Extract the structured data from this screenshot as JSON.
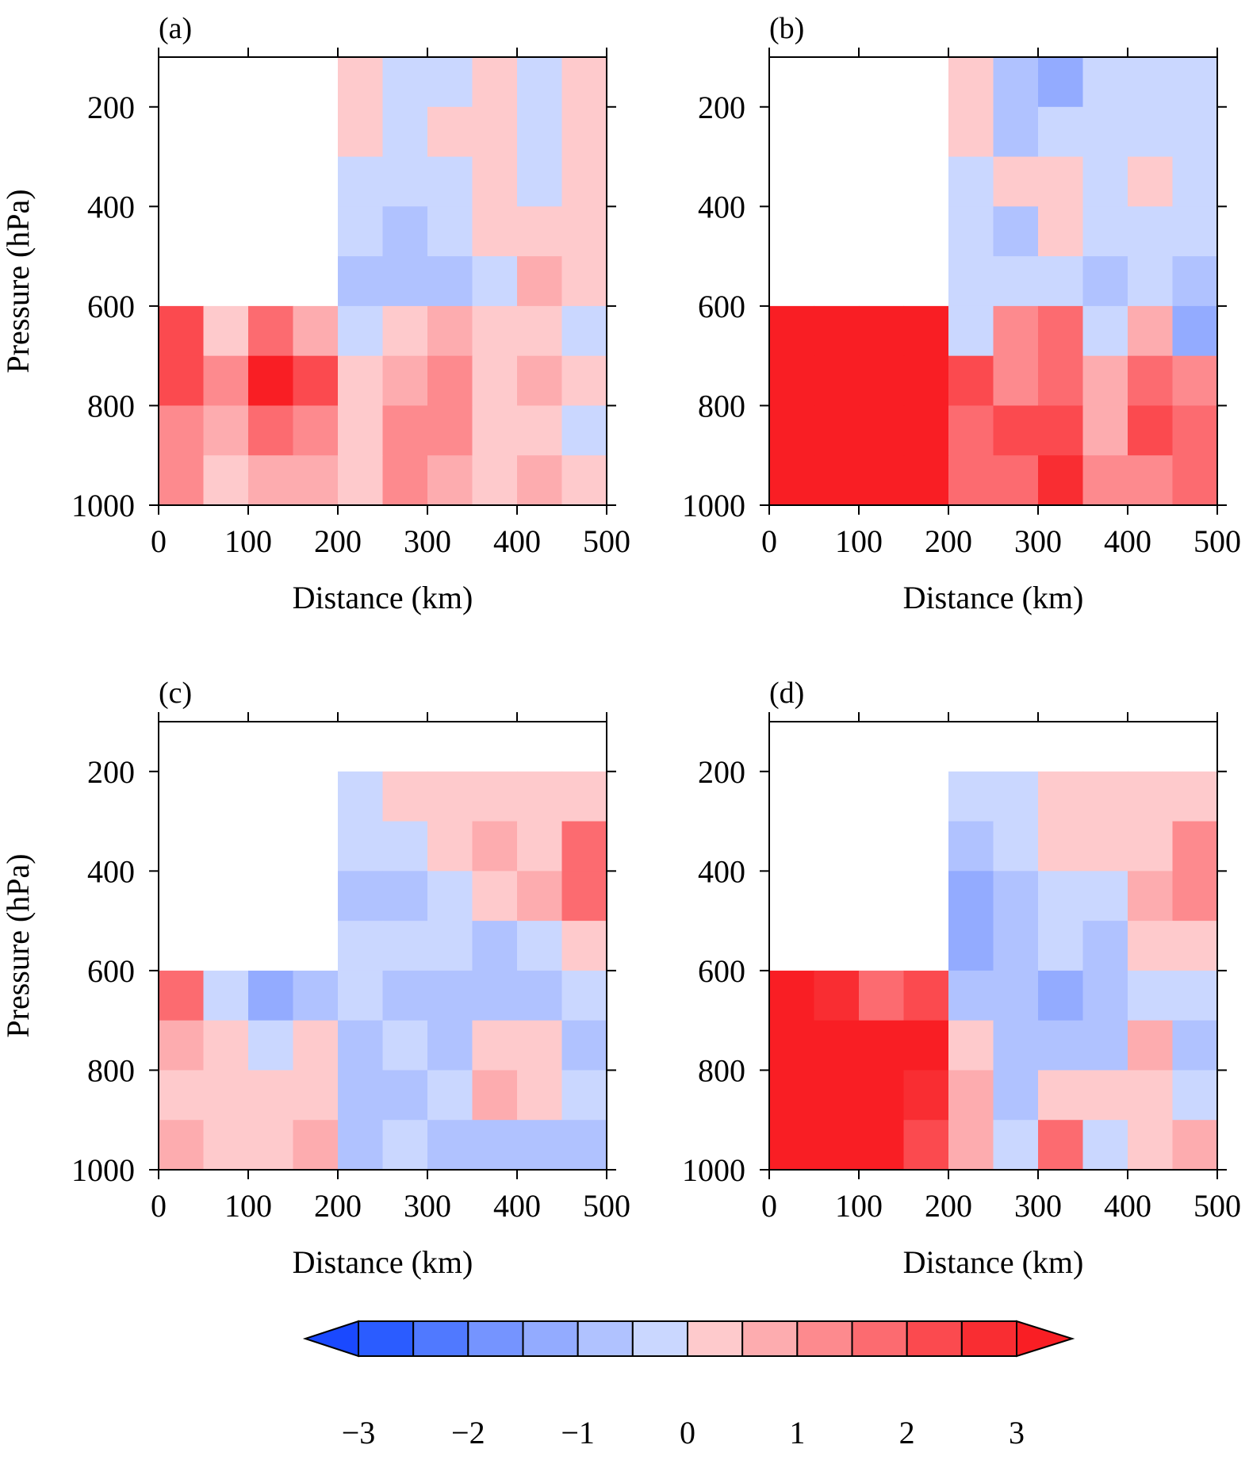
{
  "chart_data": {
    "type": "heatmap",
    "panel_labels": [
      "(a)",
      "(b)",
      "(c)",
      "(d)"
    ],
    "xlabel": "Distance (km)",
    "ylabel": "Pressure (hPa)",
    "xlim": [
      0,
      500
    ],
    "ylim": [
      1000,
      100
    ],
    "xticks": [
      "0",
      "100",
      "200",
      "300",
      "400",
      "500"
    ],
    "yticks": [
      "200",
      "400",
      "600",
      "800",
      "1000"
    ],
    "x_edges": [
      0,
      50,
      100,
      150,
      200,
      250,
      300,
      350,
      400,
      450,
      500
    ],
    "y_edges": [
      100,
      200,
      300,
      400,
      500,
      600,
      700,
      800,
      900,
      1000
    ],
    "colorbar": {
      "labels": [
        "−3",
        "−2",
        "−1",
        "0",
        "1",
        "2",
        "3"
      ],
      "label_values": [
        -3,
        -2,
        -1,
        0,
        1,
        2,
        3
      ],
      "levels": [
        -3,
        -2.5,
        -2,
        -1.5,
        -1,
        -0.5,
        0,
        0.5,
        1,
        1.5,
        2,
        2.5,
        3
      ],
      "colors": [
        "#2b5cff",
        "#5079ff",
        "#7594ff",
        "#93abff",
        "#b0c2ff",
        "#cad7ff",
        "#fecacc",
        "#fdacaf",
        "#fd8a8e",
        "#fc6b70",
        "#fb4a4f",
        "#f92d32"
      ],
      "under_color": "#1a49ff",
      "over_color": "#f91e24"
    },
    "panels": [
      {
        "label": "(a)",
        "values": [
          [
            null,
            null,
            null,
            null,
            0.2,
            -0.2,
            -0.2,
            0.2,
            -0.2,
            0.2
          ],
          [
            null,
            null,
            null,
            null,
            0.2,
            -0.2,
            0.2,
            0.2,
            -0.2,
            0.2
          ],
          [
            null,
            null,
            null,
            null,
            -0.2,
            -0.2,
            -0.2,
            0.2,
            -0.2,
            0.2
          ],
          [
            null,
            null,
            null,
            null,
            -0.2,
            -0.7,
            -0.2,
            0.2,
            0.2,
            0.2
          ],
          [
            null,
            null,
            null,
            null,
            -0.7,
            -0.7,
            -0.7,
            -0.2,
            0.7,
            0.2
          ],
          [
            2.3,
            0.2,
            1.7,
            0.7,
            -0.2,
            0.2,
            0.7,
            0.2,
            0.2,
            -0.2
          ],
          [
            2.3,
            1.2,
            3.2,
            2.3,
            0.2,
            0.7,
            1.2,
            0.2,
            0.7,
            0.2
          ],
          [
            1.2,
            0.7,
            1.7,
            1.2,
            0.2,
            1.2,
            1.2,
            0.2,
            0.2,
            -0.2
          ],
          [
            1.2,
            0.2,
            0.7,
            0.7,
            0.2,
            1.2,
            0.7,
            0.2,
            0.7,
            0.2
          ]
        ]
      },
      {
        "label": "(b)",
        "values": [
          [
            null,
            null,
            null,
            null,
            0.2,
            -0.7,
            -1.2,
            -0.2,
            -0.2,
            -0.2
          ],
          [
            null,
            null,
            null,
            null,
            0.2,
            -0.7,
            -0.2,
            -0.2,
            -0.2,
            -0.2
          ],
          [
            null,
            null,
            null,
            null,
            -0.2,
            0.2,
            0.2,
            -0.2,
            0.2,
            -0.2
          ],
          [
            null,
            null,
            null,
            null,
            -0.2,
            -0.7,
            0.2,
            -0.2,
            -0.2,
            -0.2
          ],
          [
            null,
            null,
            null,
            null,
            -0.2,
            -0.2,
            -0.2,
            -0.7,
            -0.2,
            -0.7
          ],
          [
            3.2,
            3.2,
            3.2,
            3.2,
            -0.2,
            1.2,
            1.7,
            -0.2,
            0.7,
            -1.2
          ],
          [
            3.2,
            3.2,
            3.2,
            3.2,
            2.3,
            1.2,
            1.7,
            0.7,
            1.7,
            1.2
          ],
          [
            3.2,
            3.2,
            3.2,
            3.2,
            1.7,
            2.3,
            2.3,
            0.7,
            2.3,
            1.7
          ],
          [
            3.2,
            3.2,
            3.2,
            3.2,
            1.7,
            1.7,
            2.8,
            1.2,
            1.2,
            1.7
          ]
        ]
      },
      {
        "label": "(c)",
        "values": [
          [
            null,
            null,
            null,
            null,
            null,
            null,
            null,
            null,
            null,
            null
          ],
          [
            null,
            null,
            null,
            null,
            -0.2,
            0.2,
            0.2,
            0.2,
            0.2,
            0.2
          ],
          [
            null,
            null,
            null,
            null,
            -0.2,
            -0.2,
            0.2,
            0.7,
            0.2,
            1.7
          ],
          [
            null,
            null,
            null,
            null,
            -0.7,
            -0.7,
            -0.2,
            0.2,
            0.7,
            1.7
          ],
          [
            null,
            null,
            null,
            null,
            -0.2,
            -0.2,
            -0.2,
            -0.7,
            -0.2,
            0.2
          ],
          [
            1.7,
            -0.2,
            -1.2,
            -0.7,
            -0.2,
            -0.7,
            -0.7,
            -0.7,
            -0.7,
            -0.2
          ],
          [
            0.7,
            0.2,
            -0.2,
            0.2,
            -0.7,
            -0.2,
            -0.7,
            0.2,
            0.2,
            -0.7
          ],
          [
            0.2,
            0.2,
            0.2,
            0.2,
            -0.7,
            -0.7,
            -0.2,
            0.7,
            0.2,
            -0.2
          ],
          [
            0.7,
            0.2,
            0.2,
            0.7,
            -0.7,
            -0.2,
            -0.7,
            -0.7,
            -0.7,
            -0.7
          ]
        ]
      },
      {
        "label": "(d)",
        "values": [
          [
            null,
            null,
            null,
            null,
            null,
            null,
            null,
            null,
            null,
            null
          ],
          [
            null,
            null,
            null,
            null,
            -0.2,
            -0.2,
            0.2,
            0.2,
            0.2,
            0.2
          ],
          [
            null,
            null,
            null,
            null,
            -0.7,
            -0.2,
            0.2,
            0.2,
            0.2,
            1.2
          ],
          [
            null,
            null,
            null,
            null,
            -1.2,
            -0.7,
            -0.2,
            -0.2,
            0.7,
            1.2
          ],
          [
            null,
            null,
            null,
            null,
            -1.2,
            -0.7,
            -0.2,
            -0.7,
            0.2,
            0.2
          ],
          [
            3.2,
            2.8,
            1.7,
            2.3,
            -0.7,
            -0.7,
            -1.2,
            -0.7,
            -0.2,
            -0.2
          ],
          [
            3.2,
            3.2,
            3.2,
            3.2,
            0.2,
            -0.7,
            -0.7,
            -0.7,
            0.7,
            -0.7
          ],
          [
            3.2,
            3.2,
            3.2,
            2.8,
            0.7,
            -0.7,
            0.2,
            0.2,
            0.2,
            -0.2
          ],
          [
            3.2,
            3.2,
            3.2,
            2.3,
            0.7,
            -0.2,
            1.7,
            -0.2,
            0.2,
            0.7
          ]
        ]
      }
    ]
  }
}
